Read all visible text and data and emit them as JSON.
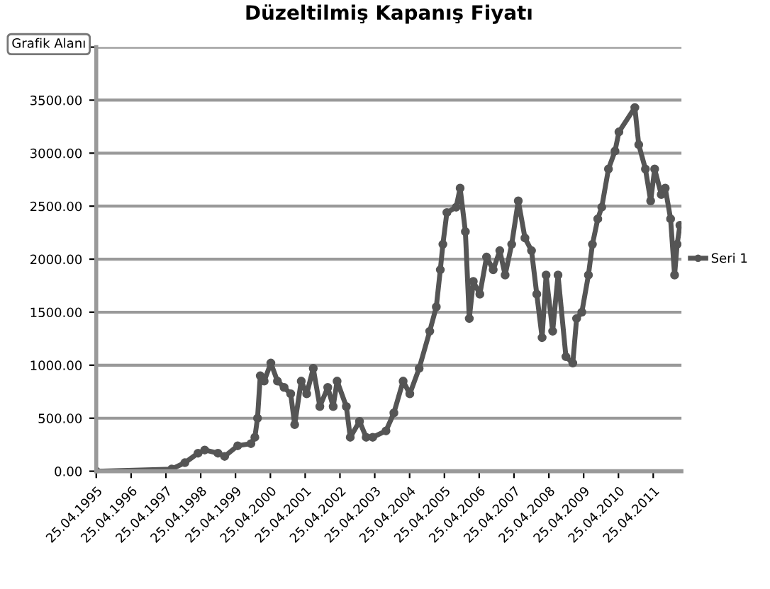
{
  "chart_data": {
    "type": "line",
    "title": "Düzeltilmiş Kapanış Fiyatı",
    "annotations": [
      "Grafik Alanı"
    ],
    "x": [
      "1995-04-25",
      "1997-06-24",
      "1997-11-10",
      "1998-03-28",
      "1998-06-06",
      "1998-10-23",
      "1999-01-01",
      "1999-05-18",
      "1999-10-04",
      "1999-11-14",
      "1999-12-12",
      "2000-01-10",
      "2000-02-20",
      "2000-04-30",
      "2000-07-08",
      "2000-09-16",
      "2000-11-24",
      "2001-01-05",
      "2001-03-15",
      "2001-05-11",
      "2001-07-19",
      "2001-09-26",
      "2001-12-18",
      "2002-02-13",
      "2002-03-26",
      "2002-07-01",
      "2002-08-11",
      "2002-11-16",
      "2003-01-25",
      "2003-04-04",
      "2003-08-21",
      "2003-11-12",
      "2004-02-17",
      "2004-04-27",
      "2004-08-03",
      "2004-11-22",
      "2005-01-30",
      "2005-03-13",
      "2005-04-09",
      "2005-05-21",
      "2005-08-26",
      "2005-10-07",
      "2005-12-01",
      "2006-01-11",
      "2006-02-22",
      "2006-05-02",
      "2006-07-11",
      "2006-09-19",
      "2006-11-27",
      "2007-01-22",
      "2007-04-01",
      "2007-06-09",
      "2007-08-18",
      "2007-10-26",
      "2007-12-20",
      "2008-02-14",
      "2008-03-27",
      "2008-06-04",
      "2008-07-30",
      "2008-10-21",
      "2009-01-01",
      "2009-02-10",
      "2009-04-06",
      "2009-06-14",
      "2009-07-26",
      "2009-09-20",
      "2009-11-01",
      "2010-01-10",
      "2010-03-20",
      "2010-04-30",
      "2010-10-14",
      "2010-11-24",
      "2011-02-02",
      "2011-03-29",
      "2011-05-10",
      "2011-07-18",
      "2011-08-29",
      "2011-10-24",
      "2011-12-05",
      "2012-01-01",
      "2012-01-30"
    ],
    "series": [
      {
        "name": "Seri 1",
        "color": "#555555",
        "values": [
          0,
          20,
          80,
          170,
          200,
          170,
          140,
          240,
          260,
          320,
          500,
          900,
          850,
          1020,
          850,
          790,
          730,
          440,
          850,
          730,
          970,
          610,
          790,
          610,
          850,
          610,
          320,
          470,
          320,
          320,
          380,
          550,
          850,
          730,
          970,
          1320,
          1550,
          1900,
          2140,
          2440,
          2490,
          2670,
          2260,
          1440,
          1790,
          1670,
          2020,
          1900,
          2080,
          1850,
          2140,
          2550,
          2200,
          2080,
          1670,
          1260,
          1850,
          1320,
          1850,
          1080,
          1020,
          1440,
          1500,
          1850,
          2140,
          2380,
          2490,
          2850,
          3020,
          3200,
          3430,
          3080,
          2850,
          2550,
          2850,
          2610,
          2670,
          2380,
          1850,
          2140,
          2320
        ]
      }
    ],
    "xlim": [
      "1995-04-25",
      "2012-02-15"
    ],
    "xticks": [
      {
        "value": "1995-04-25",
        "label": "25.04.1995"
      },
      {
        "value": "1996-04-25",
        "label": "25.04.1996"
      },
      {
        "value": "1997-04-25",
        "label": "25.04.1997"
      },
      {
        "value": "1998-04-25",
        "label": "25.04.1998"
      },
      {
        "value": "1999-04-25",
        "label": "25.04.1999"
      },
      {
        "value": "2000-04-25",
        "label": "25.04.2000"
      },
      {
        "value": "2001-04-25",
        "label": "25.04.2001"
      },
      {
        "value": "2002-04-25",
        "label": "25.04.2002"
      },
      {
        "value": "2003-04-25",
        "label": "25.04.2003"
      },
      {
        "value": "2004-04-25",
        "label": "25.04.2004"
      },
      {
        "value": "2005-04-25",
        "label": "25.04.2005"
      },
      {
        "value": "2006-04-25",
        "label": "25.04.2006"
      },
      {
        "value": "2007-04-25",
        "label": "25.04.2007"
      },
      {
        "value": "2008-04-25",
        "label": "25.04.2008"
      },
      {
        "value": "2009-04-25",
        "label": "25.04.2009"
      },
      {
        "value": "2010-04-25",
        "label": "25.04.2010"
      },
      {
        "value": "2011-04-25",
        "label": "25.04.2011"
      }
    ],
    "ylim": [
      0,
      4000
    ],
    "yticks": [
      {
        "value": 0,
        "label": "0.00"
      },
      {
        "value": 500,
        "label": "500.00"
      },
      {
        "value": 1000,
        "label": "1000.00"
      },
      {
        "value": 1500,
        "label": "1500.00"
      },
      {
        "value": 2000,
        "label": "2000.00"
      },
      {
        "value": 2500,
        "label": "2500.00"
      },
      {
        "value": 3000,
        "label": "3000.00"
      },
      {
        "value": 3500,
        "label": "3500.00"
      },
      {
        "value": 4000,
        "label": null
      }
    ],
    "grid": "y",
    "legend": "right",
    "marker": "circle",
    "line_style": "solid"
  }
}
